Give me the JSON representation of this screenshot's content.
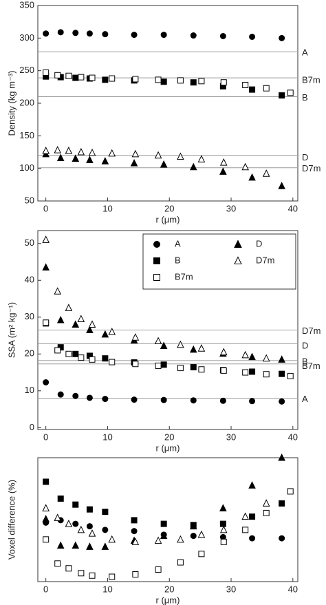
{
  "chart_data": [
    {
      "type": "scatter",
      "ylabel": "Density (kg m⁻³)",
      "xlabel": "r (μm)",
      "xlim": [
        -1.3,
        40.8
      ],
      "xticks": [
        0,
        10,
        20,
        30,
        40
      ],
      "ylim": [
        50,
        350
      ],
      "yticks": [
        50,
        100,
        150,
        200,
        250,
        300,
        350
      ],
      "hlines": [
        {
          "label": "A",
          "value": 279
        },
        {
          "label": "B7m",
          "value": 239
        },
        {
          "label": "B",
          "value": 210
        },
        {
          "label": "D",
          "value": 120
        },
        {
          "label": "D7m",
          "value": 101
        }
      ],
      "series": [
        {
          "marker": "circle",
          "filled": true,
          "color": "#000000",
          "x": [
            0,
            2.4,
            4.8,
            7.1,
            9.6,
            14.3,
            19.1,
            23.9,
            28.7,
            33.4,
            38.2
          ],
          "values": [
            307,
            309,
            308,
            307,
            306,
            305,
            305,
            304,
            303,
            302,
            300
          ]
        },
        {
          "marker": "square",
          "filled": true,
          "color": "#000000",
          "x": [
            0,
            2.4,
            4.8,
            7.1,
            9.6,
            14.3,
            19.1,
            23.9,
            28.7,
            33.4,
            38.2
          ],
          "values": [
            241,
            240,
            239,
            238,
            236,
            235,
            233,
            232,
            226,
            221,
            212
          ]
        },
        {
          "marker": "square",
          "filled": false,
          "color": "#000000",
          "x": [
            0,
            1.9,
            3.7,
            5.7,
            7.5,
            10.7,
            14.5,
            18.2,
            21.8,
            25.2,
            28.8,
            32.3,
            35.7,
            39.6
          ],
          "values": [
            247,
            243,
            242,
            240,
            239,
            238,
            237,
            236,
            235,
            234,
            232,
            228,
            223,
            216
          ]
        },
        {
          "marker": "triangle",
          "filled": true,
          "color": "#000000",
          "x": [
            0,
            2.4,
            4.8,
            7.1,
            9.6,
            14.3,
            19.1,
            23.9,
            28.7,
            33.4,
            38.2
          ],
          "values": [
            122,
            116,
            115,
            113,
            111,
            108,
            106,
            102,
            95,
            86,
            73
          ]
        },
        {
          "marker": "triangle",
          "filled": false,
          "color": "#000000",
          "x": [
            0,
            1.9,
            3.7,
            5.7,
            7.5,
            10.7,
            14.5,
            18.2,
            21.8,
            25.2,
            28.8,
            32.3,
            35.7
          ],
          "values": [
            127,
            128,
            127,
            125,
            124,
            123,
            122,
            120,
            118,
            114,
            109,
            102,
            92
          ]
        }
      ]
    },
    {
      "type": "scatter",
      "ylabel": "SSA (m² kg⁻¹)",
      "xlabel": "r (μm)",
      "xlim": [
        -1.3,
        40.8
      ],
      "xticks": [
        0,
        10,
        20,
        30,
        40
      ],
      "ylim": [
        -0.5,
        53.5
      ],
      "yticks": [
        0,
        10,
        20,
        30,
        40,
        50
      ],
      "legend": "upper right",
      "hlines": [
        {
          "label": "D7m",
          "value": 26.5
        },
        {
          "label": "D",
          "value": 22.8
        },
        {
          "label": "B",
          "value": 18.2
        },
        {
          "label": "B7m",
          "value": 17.3
        },
        {
          "label": "A",
          "value": 8
        }
      ],
      "series": [
        {
          "name": "A",
          "marker": "circle",
          "filled": true,
          "color": "#000000",
          "x": [
            0,
            2.4,
            4.8,
            7.1,
            9.6,
            14.3,
            19.1,
            23.9,
            28.7,
            33.4,
            38.2
          ],
          "values": [
            12.3,
            9,
            8.6,
            8.1,
            7.8,
            7.6,
            7.5,
            7.4,
            7.3,
            7.2,
            7.1
          ]
        },
        {
          "name": "B",
          "marker": "square",
          "filled": true,
          "color": "#000000",
          "x": [
            0,
            2.4,
            4.8,
            7.1,
            9.6,
            14.3,
            19.1,
            23.9,
            28.7,
            33.4,
            38.2
          ],
          "values": [
            28.3,
            21.8,
            20,
            19.5,
            18.8,
            17.7,
            17.1,
            16.4,
            15.6,
            15.2,
            14.6
          ]
        },
        {
          "name": "B7m",
          "marker": "square",
          "filled": false,
          "color": "#000000",
          "x": [
            0,
            1.9,
            3.7,
            5.7,
            7.5,
            10.7,
            14.5,
            18.2,
            21.8,
            25.2,
            28.8,
            32.3,
            35.7,
            39.6
          ],
          "values": [
            28.5,
            21,
            20,
            19,
            18.5,
            17.8,
            17.3,
            16.8,
            16.2,
            15.8,
            15.5,
            15,
            14.5,
            14
          ]
        },
        {
          "name": "D",
          "marker": "triangle",
          "filled": true,
          "color": "#000000",
          "x": [
            0,
            2.4,
            4.8,
            7.1,
            9.6,
            14.3,
            19.1,
            23.9,
            28.7,
            33.4,
            38.2
          ],
          "values": [
            43.5,
            29.2,
            28,
            26.5,
            25.3,
            23.7,
            22.2,
            21.2,
            20.1,
            19.2,
            18.5
          ]
        },
        {
          "name": "D7m",
          "marker": "triangle",
          "filled": false,
          "color": "#000000",
          "x": [
            0,
            1.9,
            3.7,
            5.7,
            7.5,
            10.7,
            14.5,
            18.2,
            21.8,
            25.2,
            28.8,
            32.3,
            35.7
          ],
          "values": [
            51,
            37,
            32.5,
            29.5,
            28,
            26,
            24.5,
            23.5,
            22.5,
            21.5,
            20.5,
            19.7,
            18.8
          ]
        }
      ]
    },
    {
      "type": "scatter",
      "ylabel": "Voxel difference (%)",
      "xlabel": "r (μm)",
      "xlim": [
        -1.3,
        40.8
      ],
      "xticks": [
        0,
        10,
        20,
        30,
        40
      ],
      "ylim": [
        0.85,
        6
      ],
      "series": [
        {
          "marker": "circle",
          "filled": true,
          "color": "#000000",
          "x": [
            0,
            2.4,
            4.8,
            7.1,
            9.6,
            14.3,
            19.1,
            23.9,
            28.7,
            33.4,
            38.2
          ],
          "values": [
            3.3,
            3.4,
            3.25,
            3.15,
            3,
            2.95,
            2.8,
            2.75,
            2.7,
            2.65,
            2.65
          ]
        },
        {
          "marker": "square",
          "filled": true,
          "color": "#000000",
          "x": [
            0,
            2.4,
            4.8,
            7.1,
            9.6,
            14.3,
            19.1,
            23.9,
            28.7,
            33.4,
            38.2
          ],
          "values": [
            5,
            4.3,
            4.05,
            3.85,
            3.75,
            3.4,
            3.25,
            3.2,
            3.25,
            3.55,
            4.1
          ]
        },
        {
          "marker": "square",
          "filled": false,
          "color": "#000000",
          "x": [
            0,
            1.9,
            3.7,
            5.7,
            7.5,
            10.7,
            14.5,
            18.2,
            21.8,
            25.2,
            28.8,
            32.3,
            35.7,
            39.6
          ],
          "values": [
            2.6,
            1.6,
            1.4,
            1.2,
            1.1,
            1.05,
            1.15,
            1.35,
            1.65,
            2,
            2.5,
            3,
            3.7,
            4.6
          ]
        },
        {
          "marker": "triangle",
          "filled": true,
          "color": "#000000",
          "x": [
            0,
            2.4,
            4.8,
            7.1,
            9.6,
            14.3,
            19.1,
            23.9,
            28.7,
            33.4,
            38.2
          ],
          "values": [
            3.45,
            2.35,
            2.35,
            2.3,
            2.3,
            2.55,
            2.75,
            3.15,
            3.9,
            4.85,
            6
          ]
        },
        {
          "marker": "triangle",
          "filled": false,
          "color": "#000000",
          "x": [
            0,
            1.9,
            3.7,
            5.7,
            7.5,
            10.7,
            14.5,
            18.2,
            21.8,
            25.2,
            28.8,
            32.3,
            35.7
          ],
          "values": [
            3.9,
            3.5,
            3.25,
            3,
            2.85,
            2.6,
            2.5,
            2.55,
            2.6,
            2.8,
            3,
            3.55,
            4.1
          ]
        }
      ]
    }
  ]
}
